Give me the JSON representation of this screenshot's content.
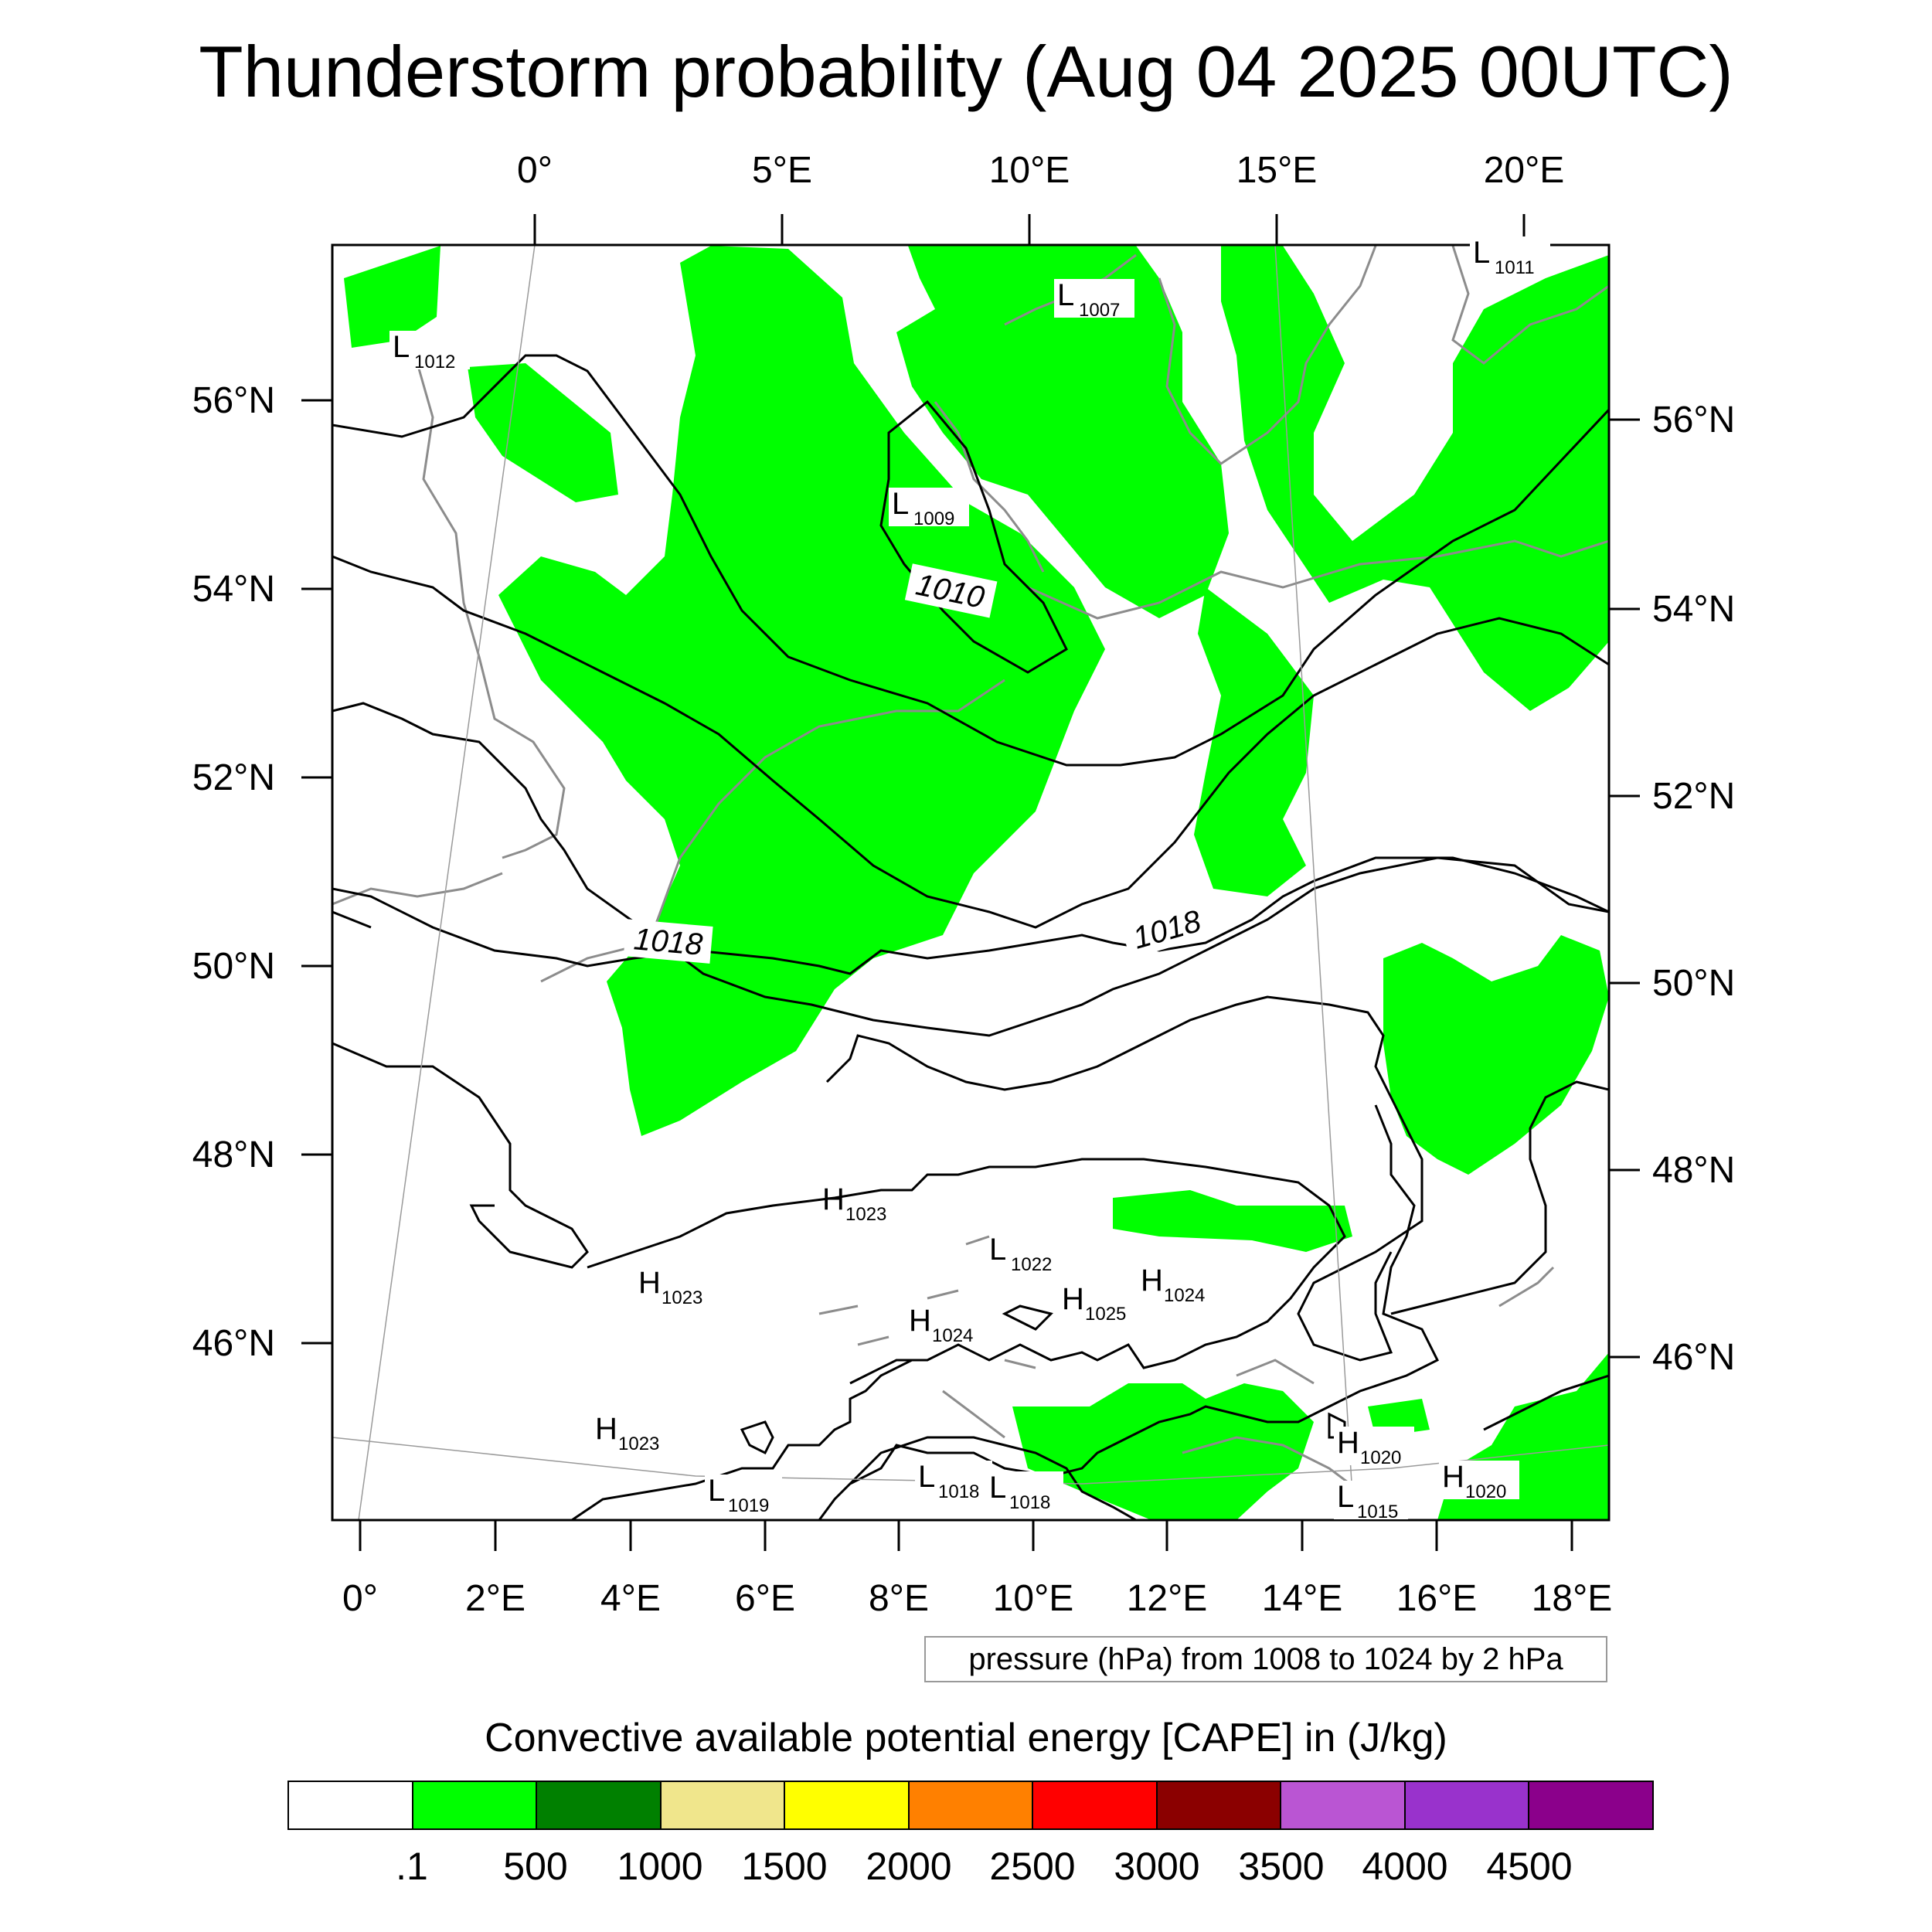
{
  "title": "Thunderstorm probability (Aug 04 2025 00UTC)",
  "map": {
    "top_lon_labels": [
      "0°",
      "5°E",
      "10°E",
      "15°E",
      "20°E"
    ],
    "bottom_lon_labels": [
      "0°",
      "2°E",
      "4°E",
      "6°E",
      "8°E",
      "10°E",
      "12°E",
      "14°E",
      "16°E",
      "18°E"
    ],
    "left_lat_labels": [
      "56°N",
      "54°N",
      "52°N",
      "50°N",
      "48°N",
      "46°N"
    ],
    "right_lat_labels": [
      "56°N",
      "54°N",
      "52°N",
      "50°N",
      "48°N",
      "46°N"
    ],
    "isobar_labels": [
      "1010",
      "1018",
      "1018"
    ],
    "pressure_centers": [
      {
        "letter": "L",
        "value": "1012"
      },
      {
        "letter": "L",
        "value": "1007"
      },
      {
        "letter": "L",
        "value": "1011"
      },
      {
        "letter": "L",
        "value": "1009"
      },
      {
        "letter": "H",
        "value": "1023"
      },
      {
        "letter": "H",
        "value": "1023"
      },
      {
        "letter": "L",
        "value": "1022"
      },
      {
        "letter": "H",
        "value": "1024"
      },
      {
        "letter": "H",
        "value": "1025"
      },
      {
        "letter": "H",
        "value": "1024"
      },
      {
        "letter": "H",
        "value": "1023"
      },
      {
        "letter": "L",
        "value": "1019"
      },
      {
        "letter": "L",
        "value": "1018"
      },
      {
        "letter": "L",
        "value": "1018"
      },
      {
        "letter": "H",
        "value": "1020"
      },
      {
        "letter": "H",
        "value": "1020"
      },
      {
        "letter": "L",
        "value": "1015"
      }
    ],
    "colors": {
      "cape_fill": "#00ff00",
      "isobar": "#000000",
      "coastline": "#8c8c8c"
    }
  },
  "contour_note": "pressure (hPa) from 1008 to 1024 by 2 hPa",
  "colorbar": {
    "title": "Convective available potential energy [CAPE] in (J/kg)",
    "colors": [
      "#ffffff",
      "#00ff00",
      "#008000",
      "#f0e68c",
      "#ffff00",
      "#ff8000",
      "#ff0000",
      "#8b0000",
      "#ba55d3",
      "#9932cc",
      "#8b008b"
    ],
    "tick_labels": [
      ".1",
      "500",
      "1000",
      "1500",
      "2000",
      "2500",
      "3000",
      "3500",
      "4000",
      "4500"
    ]
  }
}
